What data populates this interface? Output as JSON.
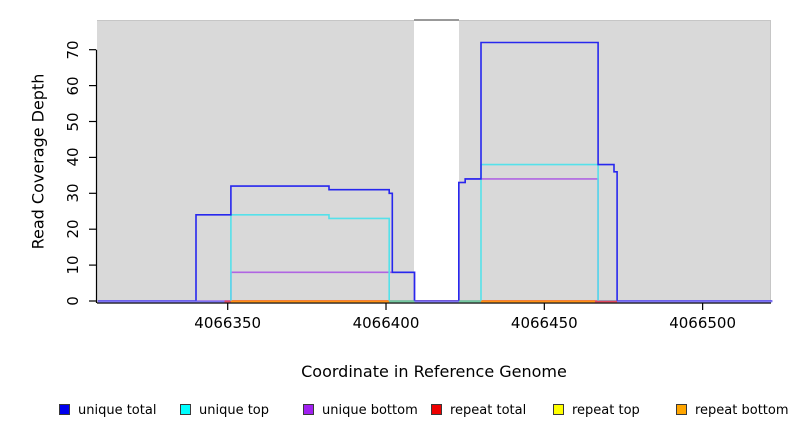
{
  "axes": {
    "x": {
      "label": "Coordinate in Reference Genome",
      "ticks": [
        4066350,
        4066400,
        4066450,
        4066500
      ],
      "range": [
        4066309,
        4066522
      ]
    },
    "y": {
      "label": "Read Coverage Depth",
      "ticks": [
        0,
        10,
        20,
        30,
        40,
        50,
        60,
        70
      ],
      "range": [
        0,
        78
      ]
    }
  },
  "plot": {
    "background_color": "#d9d9d9",
    "no_data_band_color": "#ffffff",
    "no_data_band_cap_color": "#999999",
    "axis_color": "#000000"
  },
  "chart_data": {
    "type": "line",
    "subtype": "step",
    "title": "",
    "xlabel": "Coordinate in Reference Genome",
    "ylabel": "Read Coverage Depth",
    "xlim": [
      4066309,
      4066522
    ],
    "ylim": [
      0,
      78
    ],
    "grid": false,
    "legend_position": "bottom",
    "no_data_region": {
      "from": 4066409,
      "to": 4066423
    },
    "series": [
      {
        "name": "repeat top",
        "color": "#ffff00",
        "line_color": "#ffe800",
        "segments": [
          [
            [
              4066351,
              0
            ],
            [
              4066466,
              0
            ]
          ]
        ]
      },
      {
        "name": "repeat bottom",
        "color": "#ffa500",
        "line_color": "#ff9214",
        "segments": [
          [
            [
              4066351,
              0
            ],
            [
              4066466,
              0
            ]
          ]
        ]
      },
      {
        "name": "repeat total",
        "color": "#ee0000",
        "line_color": "#e0485f",
        "segments": [
          [
            [
              4066349,
              0
            ],
            [
              4066473,
              0
            ]
          ]
        ]
      },
      {
        "name": "unique bottom",
        "color": "#a020f0",
        "line_color": "#b065e2",
        "segments": [
          [
            [
              4066309,
              0
            ],
            [
              4066351,
              0
            ],
            [
              4066351,
              8
            ],
            [
              4066409,
              8
            ],
            [
              4066409,
              0
            ],
            [
              4066423,
              0
            ],
            [
              4066423,
              33
            ],
            [
              4066425,
              33
            ],
            [
              4066425,
              34
            ],
            [
              4066467,
              34
            ],
            [
              4066467,
              0
            ],
            [
              4066522,
              0
            ]
          ]
        ]
      },
      {
        "name": "unique top",
        "color": "#00ffff",
        "line_color": "#55e1ea",
        "segments": [
          [
            [
              4066351,
              0
            ],
            [
              4066351,
              24
            ],
            [
              4066382,
              24
            ],
            [
              4066382,
              23
            ],
            [
              4066401,
              23
            ],
            [
              4066401,
              0
            ],
            [
              4066409,
              0
            ]
          ],
          [
            [
              4066423,
              0
            ],
            [
              4066430,
              0
            ],
            [
              4066430,
              38
            ],
            [
              4066467,
              38
            ],
            [
              4066467,
              0
            ],
            [
              4066473,
              0
            ]
          ]
        ]
      },
      {
        "name": "unique total",
        "color": "#0000ee",
        "line_color": "#2727ee",
        "segments": [
          [
            [
              4066309,
              0
            ],
            [
              4066340,
              0
            ],
            [
              4066340,
              24
            ],
            [
              4066351,
              24
            ],
            [
              4066351,
              32
            ],
            [
              4066382,
              32
            ],
            [
              4066382,
              31
            ],
            [
              4066401,
              31
            ],
            [
              4066401,
              30
            ],
            [
              4066402,
              30
            ],
            [
              4066402,
              8
            ],
            [
              4066409,
              8
            ],
            [
              4066409,
              0
            ],
            [
              4066423,
              0
            ],
            [
              4066423,
              33
            ],
            [
              4066425,
              33
            ],
            [
              4066425,
              34
            ],
            [
              4066430,
              34
            ],
            [
              4066430,
              72
            ],
            [
              4066467,
              72
            ],
            [
              4066467,
              38
            ],
            [
              4066472,
              38
            ],
            [
              4066472,
              36
            ],
            [
              4066473,
              36
            ],
            [
              4066473,
              0
            ],
            [
              4066522,
              0
            ]
          ]
        ]
      }
    ],
    "baseline_overlay_segments": [
      {
        "from": 4066309,
        "to": 4066349,
        "color": "#7d74f2"
      },
      {
        "from": 4066349,
        "to": 4066351,
        "color": "#e0485f"
      },
      {
        "from": 4066351,
        "to": 4066401,
        "color": "#ff9214"
      },
      {
        "from": 4066401,
        "to": 4066409,
        "color": "#74c9a0"
      },
      {
        "from": 4066409,
        "to": 4066423,
        "color": "#7d74f2"
      },
      {
        "from": 4066423,
        "to": 4066430,
        "color": "#74c9a0"
      },
      {
        "from": 4066430,
        "to": 4066466,
        "color": "#ff9214"
      },
      {
        "from": 4066466,
        "to": 4066473,
        "color": "#e0485f"
      },
      {
        "from": 4066473,
        "to": 4066522,
        "color": "#7d74f2"
      }
    ]
  },
  "legend": {
    "items": [
      {
        "label": "unique total",
        "color": "#0000ee"
      },
      {
        "label": "unique top",
        "color": "#00ffff"
      },
      {
        "label": "unique bottom",
        "color": "#a020f0"
      },
      {
        "label": "repeat total",
        "color": "#ee0000"
      },
      {
        "label": "repeat top",
        "color": "#ffff00"
      },
      {
        "label": "repeat bottom",
        "color": "#ffa500"
      }
    ]
  }
}
